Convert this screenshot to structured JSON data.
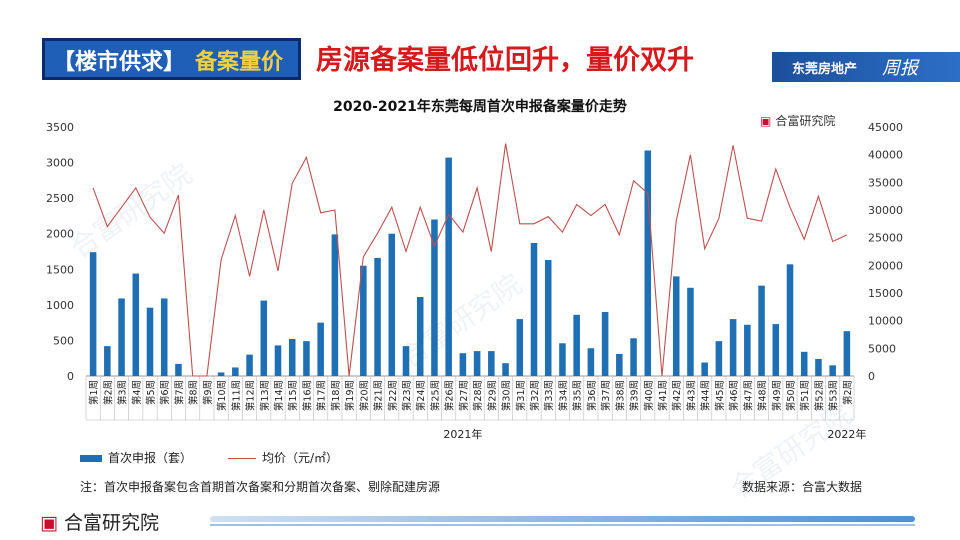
{
  "header": {
    "tag_left": "【楼市供求】",
    "tag_right": "备案量价",
    "headline": "房源备案量低位回升，量价双升",
    "brand_text": "东莞房地产",
    "brand_script": "周报"
  },
  "logo_text": "合富研究院",
  "logo_mark": "▣",
  "watermark_text": "合富研究院",
  "note": "注：首次申报备案包含首期首次备案和分期首次备案、剔除配建房源",
  "source": "数据来源：合富大数据",
  "colors": {
    "bar": "#1f6fb5",
    "line": "#c0504d",
    "accent": "#d7191c"
  },
  "chart_data": {
    "type": "bar+line",
    "title": "2020-2021年东莞每周首次申报备案量价走势",
    "categories": [
      "第1周",
      "第2周",
      "第3周",
      "第4周",
      "第5周",
      "第6周",
      "第7周",
      "第8周",
      "第9周",
      "第10周",
      "第11周",
      "第12周",
      "第13周",
      "第14周",
      "第15周",
      "第16周",
      "第17周",
      "第18周",
      "第19周",
      "第20周",
      "第21周",
      "第22周",
      "第23周",
      "第24周",
      "第25周",
      "第26周",
      "第27周",
      "第28周",
      "第29周",
      "第30周",
      "第31周",
      "第32周",
      "第33周",
      "第34周",
      "第35周",
      "第36周",
      "第37周",
      "第38周",
      "第39周",
      "第40周",
      "第41周",
      "第42周",
      "第43周",
      "第44周",
      "第45周",
      "第46周",
      "第47周",
      "第48周",
      "第49周",
      "第50周",
      "第51周",
      "第52周",
      "第53周",
      "第2周"
    ],
    "year_labels": [
      {
        "label": "2021年",
        "index": 26
      },
      {
        "label": "2022年",
        "index": 53
      }
    ],
    "series": [
      {
        "name": "首次申报（套）",
        "type": "bar",
        "axis": "left",
        "values": [
          1740,
          420,
          1090,
          1440,
          960,
          1090,
          170,
          0,
          0,
          50,
          120,
          300,
          1060,
          430,
          520,
          490,
          750,
          1990,
          0,
          1550,
          1660,
          2000,
          420,
          1110,
          2200,
          3070,
          320,
          350,
          350,
          180,
          800,
          1870,
          1630,
          460,
          860,
          390,
          900,
          310,
          530,
          3170,
          0,
          1400,
          1240,
          190,
          490,
          800,
          720,
          1270,
          730,
          1570,
          340,
          240,
          150,
          630
        ]
      },
      {
        "name": "均价（元/㎡）",
        "type": "line",
        "axis": "right",
        "values": [
          34000,
          27000,
          30500,
          34000,
          28700,
          25800,
          32700,
          0,
          0,
          21000,
          29000,
          18000,
          30000,
          19000,
          34800,
          39500,
          29500,
          30000,
          0,
          21500,
          25800,
          30500,
          22500,
          30500,
          23500,
          29200,
          26000,
          34000,
          22500,
          42000,
          27500,
          27500,
          28800,
          26000,
          31000,
          29000,
          31000,
          25500,
          35300,
          33000,
          0,
          28000,
          40000,
          23000,
          28500,
          41700,
          28500,
          28000,
          37400,
          30500,
          24700,
          32500,
          24300,
          25500
        ]
      }
    ],
    "y_left": {
      "min": 0,
      "max": 3500,
      "step": 500
    },
    "y_right": {
      "min": 0,
      "max": 45000,
      "step": 5000
    },
    "legend": [
      "首次申报（套）",
      "均价（元/㎡）"
    ],
    "legend_position": "bottom-left"
  }
}
